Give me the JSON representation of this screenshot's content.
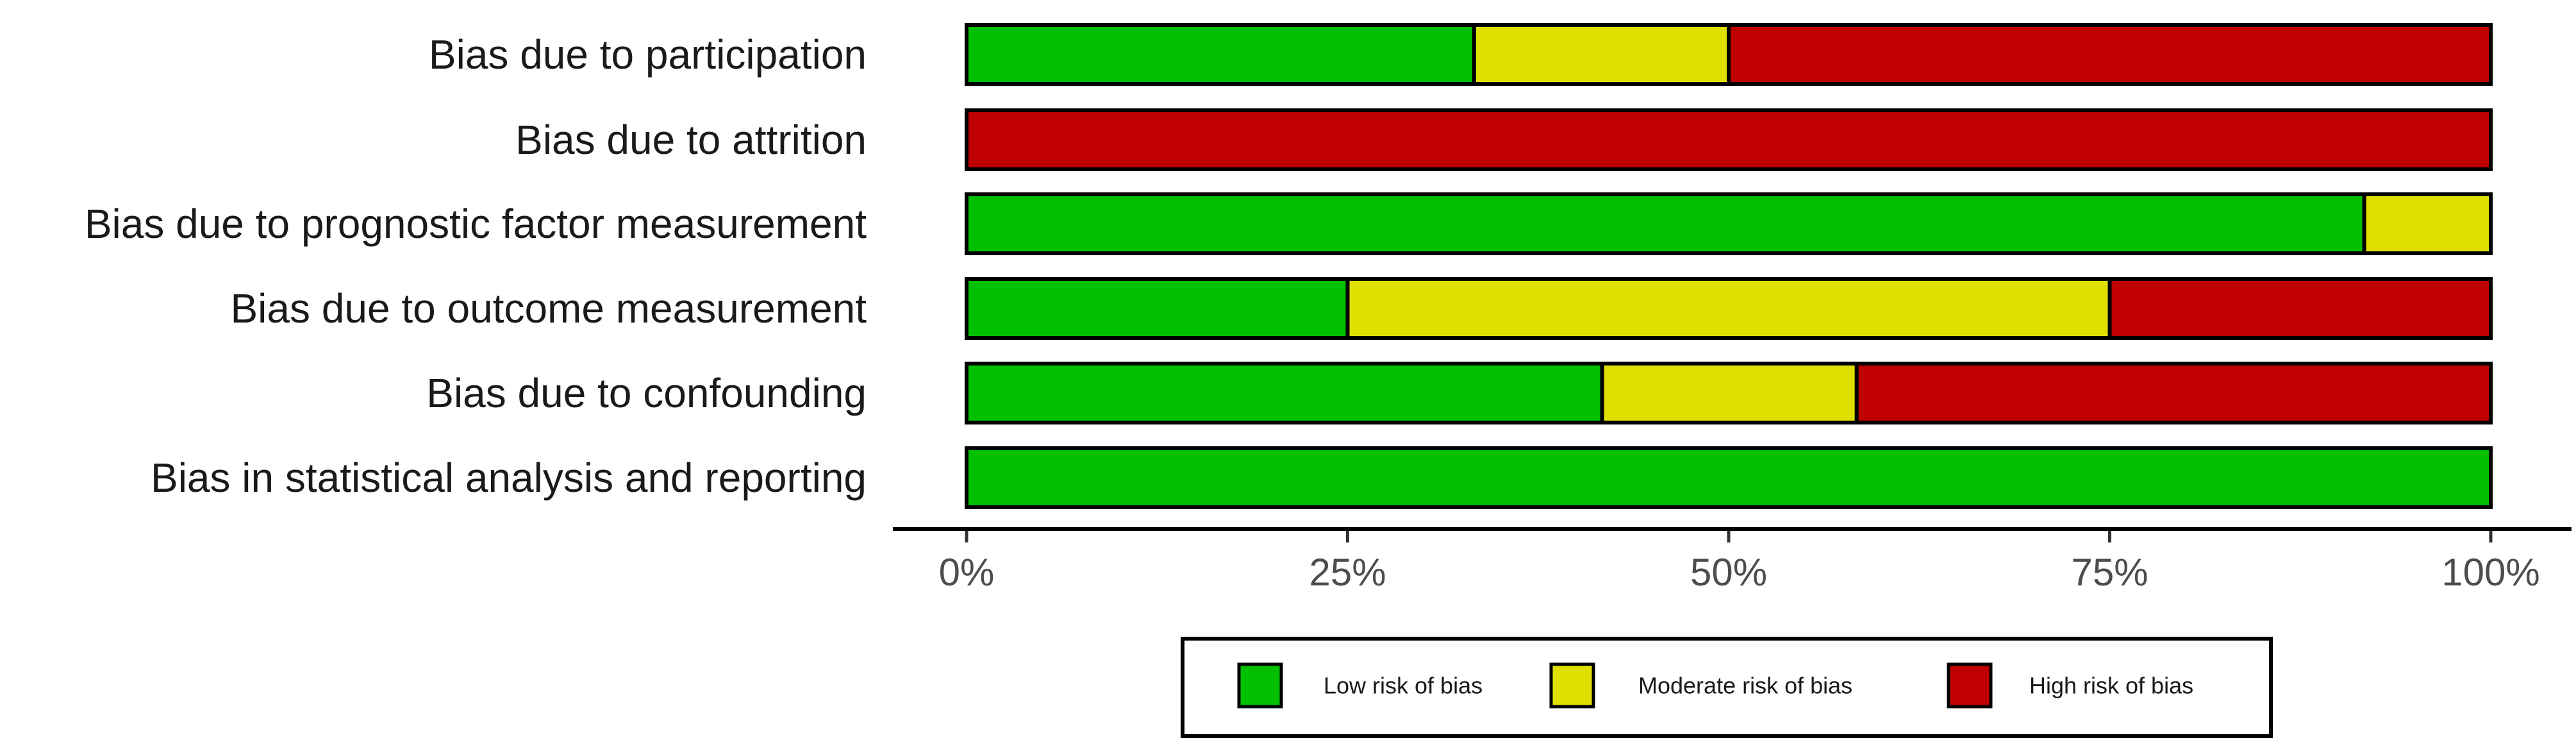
{
  "chart_data": {
    "type": "bar",
    "orientation": "horizontal",
    "stacked": true,
    "percent": true,
    "title": "",
    "xlabel": "",
    "ylabel": "",
    "xlim": [
      0,
      100
    ],
    "grid": false,
    "legend_position": "bottom",
    "categories": [
      "Bias due to participation",
      "Bias due to attrition",
      "Bias due to prognostic factor measurement",
      "Bias due to outcome measurement",
      "Bias due to confounding",
      "Bias in statistical analysis and reporting"
    ],
    "series": [
      {
        "name": "Low risk of bias",
        "color": "#00c000",
        "values": [
          33.3,
          0,
          91.7,
          25,
          41.7,
          100
        ]
      },
      {
        "name": "Moderate risk of bias",
        "color": "#e0e000",
        "values": [
          16.7,
          0,
          8.3,
          50,
          16.7,
          0
        ]
      },
      {
        "name": "High risk of bias",
        "color": "#c00000",
        "values": [
          50,
          100,
          0,
          25,
          41.6,
          0
        ]
      }
    ],
    "x_ticks": [
      0,
      25,
      50,
      75,
      100
    ],
    "x_tick_labels": [
      "0%",
      "25%",
      "50%",
      "75%",
      "100%"
    ]
  }
}
